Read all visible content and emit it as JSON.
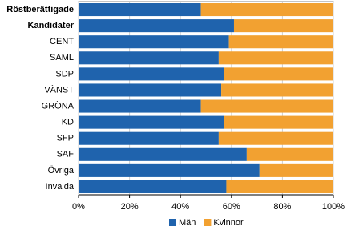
{
  "chart_data": {
    "type": "stacked_barh",
    "categories": [
      "Röstberättigade",
      "Kandidater",
      "CENT",
      "SAML",
      "SDP",
      "VÄNST",
      "GRÖNA",
      "KD",
      "SFP",
      "SAF",
      "Övriga",
      "Invalda"
    ],
    "series": [
      {
        "name": "Män",
        "color": "#1f63ad",
        "values": [
          48,
          61,
          59,
          55,
          57,
          56,
          48,
          57,
          55,
          66,
          71,
          58
        ]
      },
      {
        "name": "Kvinnor",
        "color": "#f2a131",
        "values": [
          52,
          39,
          41,
          45,
          43,
          44,
          52,
          43,
          45,
          34,
          29,
          42
        ]
      }
    ],
    "xlim": [
      0,
      100
    ],
    "xticks": [
      {
        "value": 0,
        "label": "0%"
      },
      {
        "value": 20,
        "label": "20%"
      },
      {
        "value": 40,
        "label": "40%"
      },
      {
        "value": 60,
        "label": "60%"
      },
      {
        "value": 80,
        "label": "80%"
      },
      {
        "value": 100,
        "label": "100%"
      }
    ],
    "grid": true,
    "legend": "bottom"
  }
}
